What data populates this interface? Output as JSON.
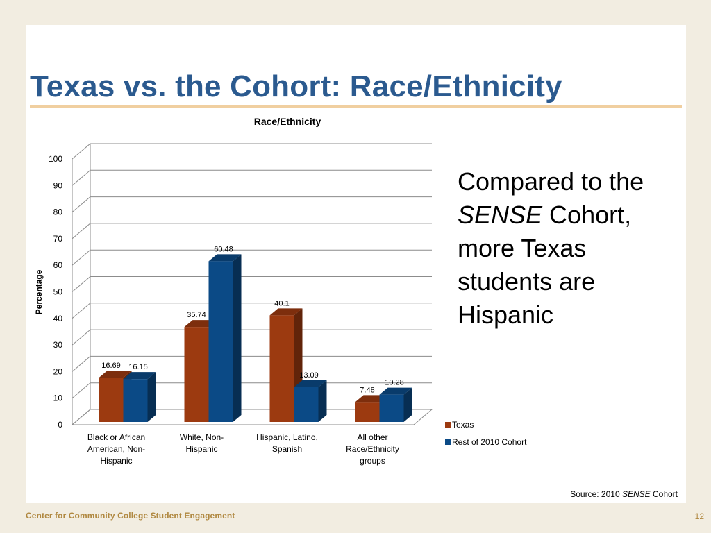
{
  "slide": {
    "title": "Texas vs. the Cohort: Race/Ethnicity",
    "callout": {
      "line1": "Compared to the",
      "italic": "SENSE",
      "line2_rest": " Cohort,",
      "line3": "more Texas",
      "line4": "students are",
      "line5": "Hispanic"
    },
    "source": {
      "prefix": "Source: 2010 ",
      "italic": "SENSE",
      "suffix": " Cohort"
    },
    "footer": "Center for Community College Student Engagement",
    "page_number": "12"
  },
  "colors": {
    "texas": "#9c3a10",
    "cohort": "#0b4a86",
    "title": "#2b5a8f",
    "gridline": "#8c8c8c"
  },
  "chart_data": {
    "type": "bar",
    "title": "Race/Ethnicity",
    "ylabel": "Percentage",
    "xlabel": "",
    "ylim": [
      0,
      100
    ],
    "yticks": [
      "0",
      "10",
      "20",
      "30",
      "40",
      "50",
      "60",
      "70",
      "80",
      "90",
      "100"
    ],
    "categories": [
      [
        "Black or African",
        "American, Non-",
        "Hispanic"
      ],
      [
        "White, Non-",
        "Hispanic"
      ],
      [
        "Hispanic, Latino,",
        "Spanish"
      ],
      [
        "All other",
        "Race/Ethnicity",
        "groups"
      ]
    ],
    "series": [
      {
        "name": "Texas",
        "values": [
          16.69,
          35.74,
          40.1,
          7.48
        ],
        "labels": [
          "16.69",
          "35.74",
          "40.1",
          "7.48"
        ]
      },
      {
        "name": "Rest of 2010 Cohort",
        "values": [
          16.15,
          60.48,
          13.09,
          10.28
        ],
        "labels": [
          "16.15",
          "60.48",
          "13.09",
          "10.28"
        ]
      }
    ],
    "grid": true,
    "legend": "right",
    "style": "3d-clustered-column"
  }
}
